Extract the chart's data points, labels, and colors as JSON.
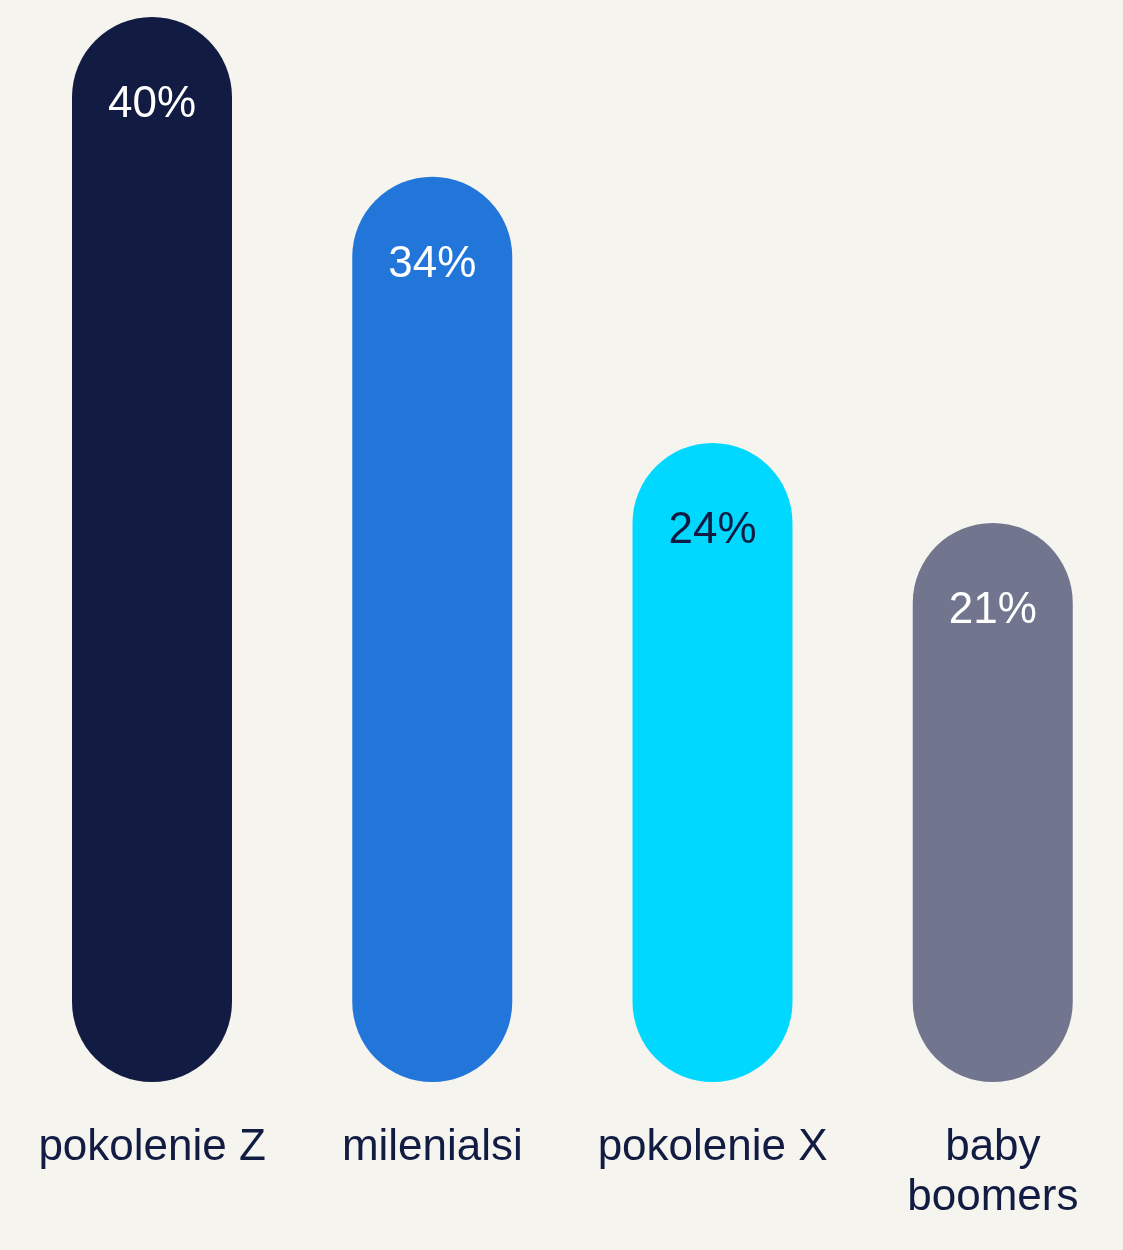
{
  "chart_data": {
    "type": "bar",
    "categories": [
      "pokolenie Z",
      "milenialsi",
      "pokolenie X",
      "baby boomers"
    ],
    "values": [
      40,
      34,
      24,
      21
    ],
    "value_labels": [
      "40%",
      "34%",
      "24%",
      "21%"
    ],
    "colors": [
      "#121b42",
      "#2276d9",
      "#00d8ff",
      "#71768e"
    ],
    "grid": false,
    "legend": false
  }
}
